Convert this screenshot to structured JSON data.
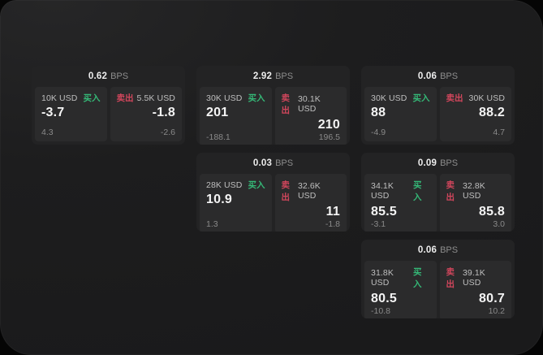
{
  "labels": {
    "bps": "BPS",
    "buy": "买入",
    "sell": "卖出"
  },
  "colors": {
    "buy_green": "#35b877",
    "sell_red": "#d1465c",
    "panel_bg": "#1d1d1e",
    "card_bg": "#232324",
    "side_bg": "#2b2b2c"
  },
  "cards": [
    {
      "bps": "0.62",
      "buy": {
        "size": "10K USD",
        "price": "-3.7",
        "delta": "4.3"
      },
      "sell": {
        "size": "5.5K USD",
        "price": "-1.8",
        "delta": "-2.6"
      }
    },
    {
      "bps": "2.92",
      "buy": {
        "size": "30K USD",
        "price": "201",
        "delta": "-188.1"
      },
      "sell": {
        "size": "30.1K USD",
        "price": "210",
        "delta": "196.5"
      }
    },
    {
      "bps": "0.06",
      "buy": {
        "size": "30K USD",
        "price": "88",
        "delta": "-4.9"
      },
      "sell": {
        "size": "30K USD",
        "price": "88.2",
        "delta": "4.7"
      }
    },
    {
      "bps": "0.03",
      "buy": {
        "size": "28K USD",
        "price": "10.9",
        "delta": "1.3"
      },
      "sell": {
        "size": "32.6K USD",
        "price": "11",
        "delta": "-1.8"
      }
    },
    {
      "bps": "0.09",
      "buy": {
        "size": "34.1K USD",
        "price": "85.5",
        "delta": "-3.1"
      },
      "sell": {
        "size": "32.8K USD",
        "price": "85.8",
        "delta": "3.0"
      }
    },
    {
      "bps": "0.06",
      "buy": {
        "size": "31.8K USD",
        "price": "80.5",
        "delta": "-10.8"
      },
      "sell": {
        "size": "39.1K USD",
        "price": "80.7",
        "delta": "10.2"
      }
    }
  ]
}
